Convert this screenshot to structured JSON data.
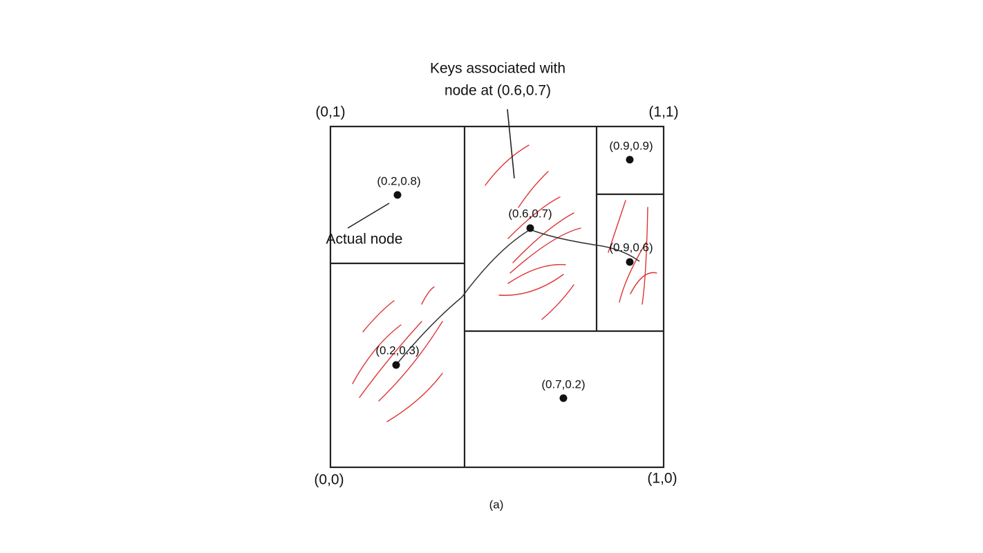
{
  "annotation": {
    "keys_line1": "Keys associated with",
    "keys_line2": "node at (0.6,0.7)",
    "actual_node": "Actual node"
  },
  "corners": [
    "(0,1)",
    "(1,1)",
    "(0,0)",
    "(1,0)"
  ],
  "nodes": [
    {
      "label": "(0.2,0.8)"
    },
    {
      "label": "(0.6,0.7)"
    },
    {
      "label": "(0.9,0.9)"
    },
    {
      "label": "(0.9,0.6)"
    },
    {
      "label": "(0.2,0.3)"
    },
    {
      "label": "(0.7,0.2)"
    }
  ],
  "caption": "(a)"
}
